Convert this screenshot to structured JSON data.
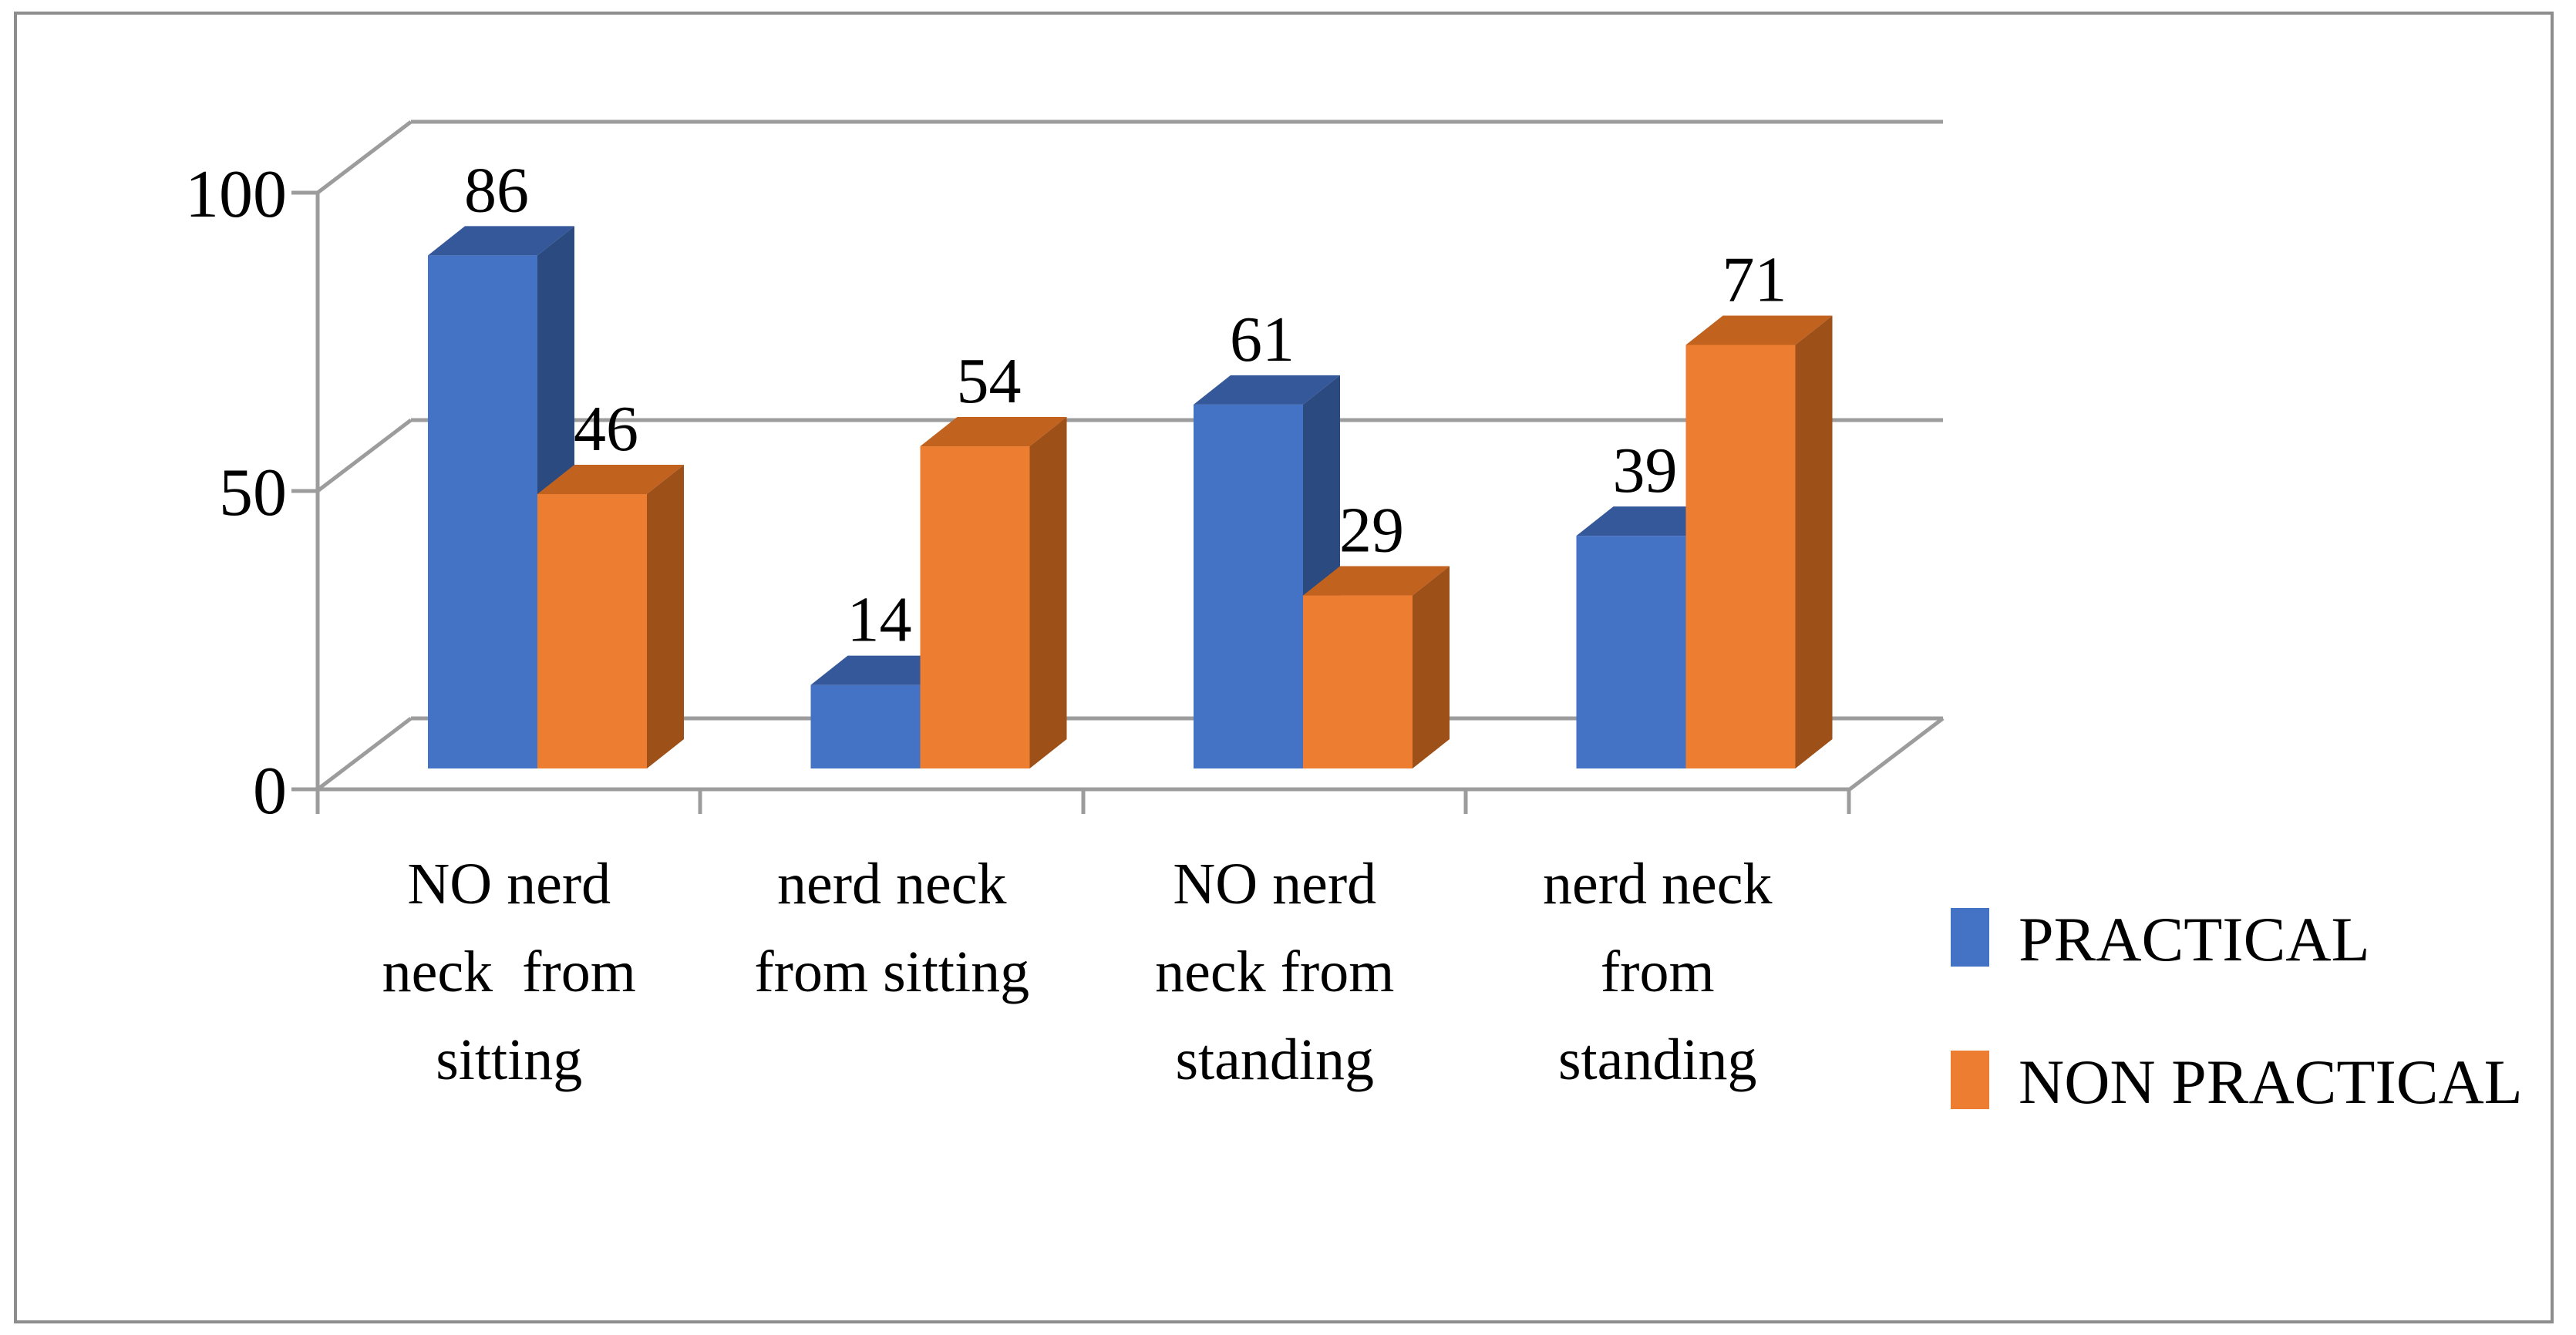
{
  "chart_data": {
    "type": "bar",
    "variant": "3d-clustered-column",
    "title": "",
    "xlabel": "",
    "ylabel": "",
    "ylim": [
      0,
      100
    ],
    "ytick_labels": [
      "100",
      "50",
      "0"
    ],
    "grid": true,
    "legend_position": "right",
    "categories": [
      {
        "label": "NO nerd neck  from sitting",
        "lines": [
          "NO nerd",
          "neck  from",
          "sitting"
        ]
      },
      {
        "label": "nerd neck from sitting",
        "lines": [
          "nerd neck",
          "from sitting"
        ]
      },
      {
        "label": "NO nerd neck from standing",
        "lines": [
          "NO nerd",
          "neck from",
          "standing"
        ]
      },
      {
        "label": "nerd neck from standing",
        "lines": [
          "nerd neck",
          "from",
          "standing"
        ]
      }
    ],
    "series": [
      {
        "name": "PRACTICAL",
        "values": [
          86,
          14,
          61,
          39
        ],
        "data_labels": [
          "86",
          "14",
          "61",
          "39"
        ],
        "color": {
          "front": "#4472C4",
          "top": "#35589B",
          "side": "#2B4A80"
        }
      },
      {
        "name": "NON PRACTICAL",
        "values": [
          46,
          54,
          29,
          71
        ],
        "data_labels": [
          "46",
          "54",
          "29",
          "71"
        ],
        "color": {
          "front": "#ED7D31",
          "top": "#C2621F",
          "side": "#9E5019"
        }
      }
    ]
  },
  "colors": {
    "background": "#ffffff",
    "gridline": "#9c9c9c",
    "frame_border": "#8d8d8d",
    "text": "#000000"
  }
}
